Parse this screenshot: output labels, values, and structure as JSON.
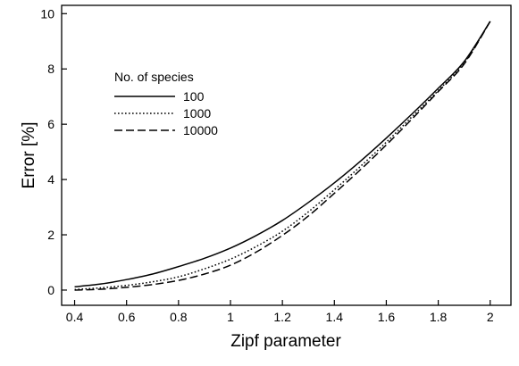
{
  "chart_data": {
    "type": "line",
    "title": "",
    "xlabel": "Zipf parameter",
    "ylabel": "Error [%]",
    "xlim": [
      0.35,
      2.08
    ],
    "ylim": [
      -0.55,
      10.3
    ],
    "xticks": [
      0.4,
      0.6,
      0.8,
      1,
      1.2,
      1.4,
      1.6,
      1.8,
      2
    ],
    "xtick_labels": [
      "0.4",
      "0.6",
      "0.8",
      "1",
      "1.2",
      "1.4",
      "1.6",
      "1.8",
      "2"
    ],
    "yticks": [
      0,
      2,
      4,
      6,
      8,
      10
    ],
    "ytick_labels": [
      "0",
      "2",
      "4",
      "6",
      "8",
      "10"
    ],
    "grid": false,
    "legend": {
      "title": "No. of species",
      "placement": "upper-left"
    },
    "x": [
      0.4,
      0.5,
      0.6,
      0.7,
      0.8,
      0.9,
      1.0,
      1.1,
      1.2,
      1.3,
      1.4,
      1.5,
      1.6,
      1.7,
      1.8,
      1.9,
      2.0
    ],
    "series": [
      {
        "name": "100",
        "style": "solid",
        "values": [
          0.12,
          0.22,
          0.38,
          0.58,
          0.85,
          1.15,
          1.52,
          1.98,
          2.52,
          3.17,
          3.88,
          4.66,
          5.5,
          6.38,
          7.3,
          8.27,
          9.72
        ]
      },
      {
        "name": "1000",
        "style": "dotted",
        "values": [
          0.02,
          0.08,
          0.17,
          0.3,
          0.48,
          0.77,
          1.12,
          1.58,
          2.13,
          2.83,
          3.63,
          4.47,
          5.35,
          6.28,
          7.22,
          8.22,
          9.72
        ]
      },
      {
        "name": "10000",
        "style": "dashed",
        "values": [
          0.0,
          0.03,
          0.1,
          0.2,
          0.35,
          0.58,
          0.9,
          1.38,
          1.98,
          2.68,
          3.5,
          4.35,
          5.25,
          6.2,
          7.18,
          8.18,
          9.72
        ]
      }
    ]
  }
}
